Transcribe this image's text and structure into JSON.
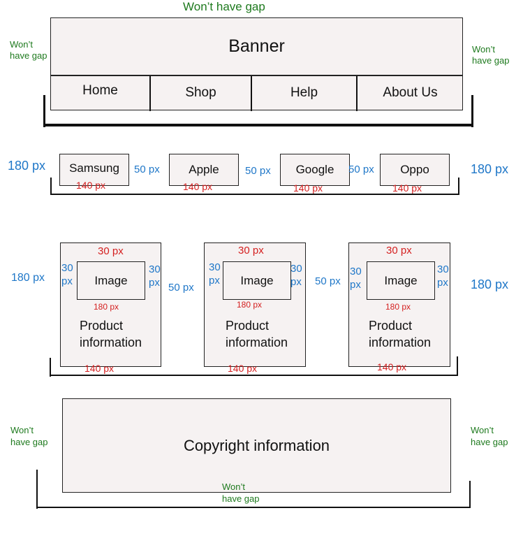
{
  "header": {
    "top_note": "Won’t have gap",
    "left_note": "Won’t\nhave gap",
    "right_note": "Won’t\nhave gap",
    "banner_label": "Banner",
    "nav": [
      "Home",
      "Shop",
      "Help",
      "About Us"
    ]
  },
  "brands": {
    "side_left": "180 px",
    "side_right": "180 px",
    "gap": "50 px",
    "items": [
      {
        "label": "Samsung",
        "width": "140 px"
      },
      {
        "label": "Apple",
        "width": "140 px"
      },
      {
        "label": "Google",
        "width": "140 px"
      },
      {
        "label": "Oppo",
        "width": "140 px"
      }
    ]
  },
  "products": {
    "side_left": "180 px",
    "side_right": "180 px",
    "gap": "50 px",
    "cards": [
      {
        "top": "30 px",
        "left_pad": "30\npx",
        "right_pad": "30\npx",
        "image_label": "Image",
        "image_width": "180 px",
        "info": "Product\ninformation",
        "width": "140 px"
      },
      {
        "top": "30 px",
        "left_pad": "30\npx",
        "right_pad": "30\npx",
        "image_label": "Image",
        "image_width": "180 px",
        "info": "Product\ninformation",
        "width": "140 px"
      },
      {
        "top": "30 px",
        "left_pad": "30\npx",
        "right_pad": "30\npx",
        "image_label": "Image",
        "image_width": "180 px",
        "info": "Product\ninformation",
        "width": "140 px"
      }
    ]
  },
  "footer": {
    "label": "Copyright information",
    "left_note": "Won’t\nhave gap",
    "right_note": "Won’t\nhave gap",
    "bottom_note": "Won’t\nhave gap"
  }
}
